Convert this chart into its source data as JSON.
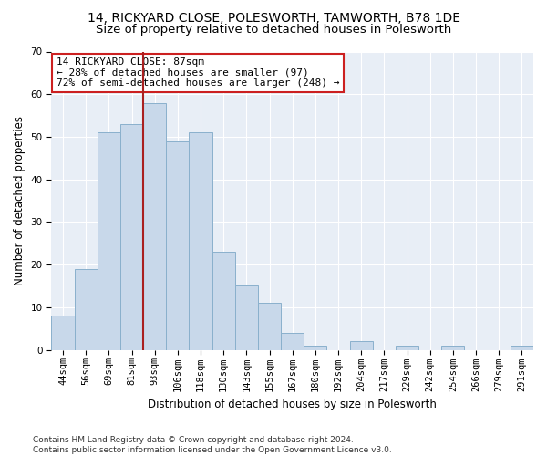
{
  "title1": "14, RICKYARD CLOSE, POLESWORTH, TAMWORTH, B78 1DE",
  "title2": "Size of property relative to detached houses in Polesworth",
  "xlabel": "Distribution of detached houses by size in Polesworth",
  "ylabel": "Number of detached properties",
  "categories": [
    "44sqm",
    "56sqm",
    "69sqm",
    "81sqm",
    "93sqm",
    "106sqm",
    "118sqm",
    "130sqm",
    "143sqm",
    "155sqm",
    "167sqm",
    "180sqm",
    "192sqm",
    "204sqm",
    "217sqm",
    "229sqm",
    "242sqm",
    "254sqm",
    "266sqm",
    "279sqm",
    "291sqm"
  ],
  "values": [
    8,
    19,
    51,
    53,
    58,
    49,
    51,
    23,
    15,
    11,
    4,
    1,
    0,
    2,
    0,
    1,
    0,
    1,
    0,
    0,
    1
  ],
  "bar_color": "#c8d8ea",
  "bar_edge_color": "#8ab0cc",
  "vline_color": "#aa2020",
  "annotation_text": "14 RICKYARD CLOSE: 87sqm\n← 28% of detached houses are smaller (97)\n72% of semi-detached houses are larger (248) →",
  "annotation_box_color": "white",
  "annotation_box_edge_color": "#cc2020",
  "bg_color": "#e8eef6",
  "ylim": [
    0,
    70
  ],
  "yticks": [
    0,
    10,
    20,
    30,
    40,
    50,
    60,
    70
  ],
  "footer": "Contains HM Land Registry data © Crown copyright and database right 2024.\nContains public sector information licensed under the Open Government Licence v3.0.",
  "title1_fontsize": 10,
  "title2_fontsize": 9.5,
  "xlabel_fontsize": 8.5,
  "ylabel_fontsize": 8.5,
  "tick_fontsize": 7.5,
  "annotation_fontsize": 8,
  "footer_fontsize": 6.5,
  "vline_index": 3.5
}
